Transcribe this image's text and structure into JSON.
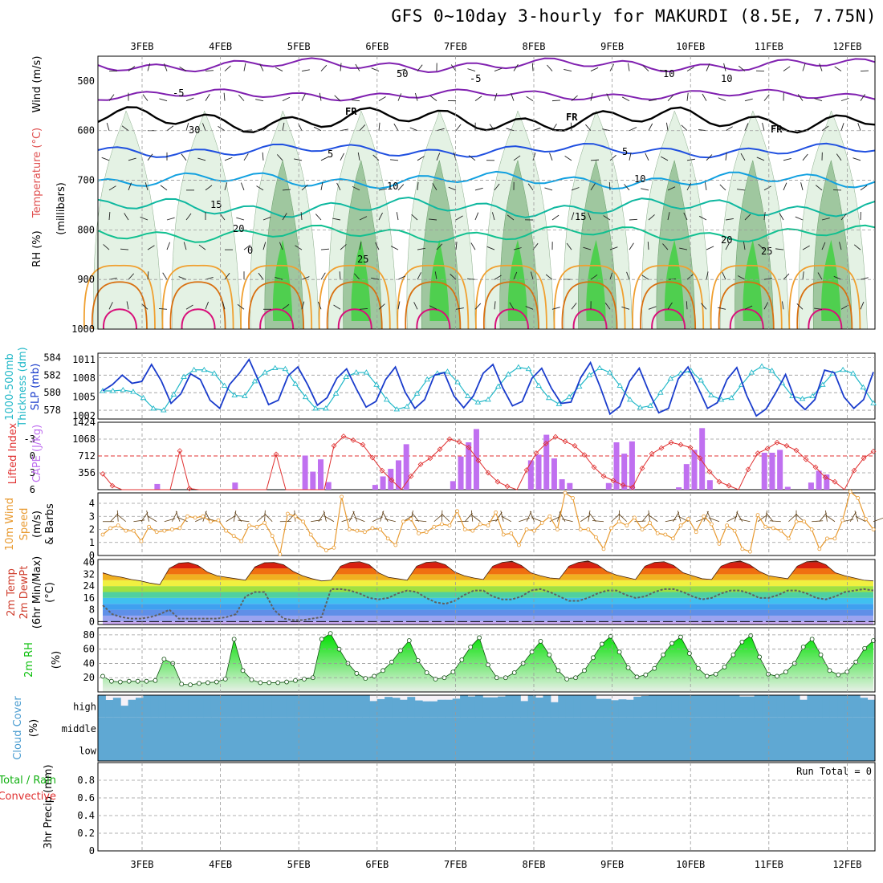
{
  "title": "GFS 0~10day 3-hourly for MAKURDI (8.5E, 7.75N)",
  "dates": [
    "3FEB",
    "4FEB",
    "5FEB",
    "6FEB",
    "7FEB",
    "8FEB",
    "9FEB",
    "10FEB",
    "11FEB",
    "12FEB"
  ],
  "colors": {
    "temp_warm": "#e8a020",
    "temp_hot": "#d8107a",
    "freezing": "#000000",
    "cool_blue": "#2050e0",
    "cyan": "#10a0e0",
    "teal": "#10b8a0",
    "rh_light": "#e4f2e4",
    "rh_mid": "#9fc79f",
    "rh_dark": "#4fcf4f",
    "slp": "#1a3ccc",
    "thickness": "#22b8c8",
    "lifted": "#e03030",
    "cape": "#c070f0",
    "wind": "#e89a30",
    "cloud": "#5fa8d3",
    "rh2m": "#10c010"
  },
  "panel_labels": {
    "upper": {
      "wind": "Wind (m/s)",
      "temp": "Temperature (°C)",
      "rh": "RH (%)",
      "unit": "(millibars)"
    },
    "thickness": {
      "a": "1000-500mb",
      "b": "Thickness (dm)",
      "slp": "SLP (mb)"
    },
    "li": {
      "li": "Lifted Index",
      "cape": "CAPE (J/kg)"
    },
    "wind10": {
      "a": "10m Wind",
      "b": "Speed",
      "c": "(m/s)",
      "d": "& Barbs"
    },
    "temp2m": {
      "a": "2m Temp",
      "b": "2m DewPt",
      "c": "(6hr Min/Max)",
      "d": "(°C)"
    },
    "rh2m": {
      "a": "2m RH",
      "b": "(%)"
    },
    "cloud": {
      "a": "Cloud Cover",
      "b": "(%)",
      "high": "high",
      "middle": "middle",
      "low": "low"
    },
    "precip": {
      "a": "Total / Rain",
      "b": "Convective",
      "c": "3hr Precip (mm)",
      "run_total": "Run Total = 0"
    }
  },
  "upper_contour_labels": [
    "-5",
    "-5",
    "FR",
    "FR",
    "FR",
    "5",
    "5",
    "10",
    "10",
    "15",
    "15",
    "20",
    "20",
    "25",
    "25",
    "0",
    "50",
    "30",
    "10",
    "10"
  ],
  "chart_data": [
    {
      "type": "line",
      "name": "upper-air",
      "y_axis": {
        "label": "(millibars)",
        "ticks": [
          500,
          600,
          700,
          800,
          900,
          1000
        ],
        "lim": [
          450,
          1000
        ]
      },
      "x": [
        "3FEB",
        "4FEB",
        "5FEB",
        "6FEB",
        "7FEB",
        "8FEB",
        "9FEB",
        "10FEB",
        "11FEB",
        "12FEB"
      ]
    },
    {
      "type": "line",
      "name": "thickness-slp",
      "thickness_axis": {
        "ticks": [
          578,
          580,
          582,
          584
        ],
        "lim": [
          577,
          584.5
        ]
      },
      "slp_axis": {
        "ticks": [
          1002,
          1005,
          1008,
          1011
        ],
        "lim": [
          1001.5,
          1012
        ]
      },
      "thickness": [
        580.2,
        580.2,
        580.3,
        580.1,
        579.4,
        578.2,
        578.0,
        579.8,
        581.8,
        582.6,
        582.6,
        582.2,
        580.8,
        579.7,
        579.6,
        581.3,
        582.3,
        582.8,
        582.7,
        581.0,
        579.5,
        578.2,
        578.2,
        579.9,
        581.8,
        582.3,
        582.3,
        580.9,
        579.2,
        578.1,
        578.4,
        579.9,
        581.5,
        582.2,
        582.4,
        581.2,
        579.6,
        578.9,
        579.2,
        580.7,
        582.1,
        582.9,
        582.7,
        580.8,
        579.4,
        578.7,
        579.5,
        580.7,
        582.0,
        582.8,
        582.3,
        580.8,
        579.2,
        578.3,
        578.5,
        580.0,
        581.6,
        582.2,
        582.5,
        581.4,
        579.7,
        579.2,
        579.4,
        580.9,
        582.3,
        583.0,
        582.5,
        581.1,
        579.6,
        579.3,
        579.6,
        580.9,
        582.2,
        582.6,
        582.2,
        580.6,
        578.8
      ],
      "slp": [
        1006.0,
        1007.0,
        1008.5,
        1007.2,
        1007.5,
        1010.2,
        1007.6,
        1004.0,
        1005.5,
        1008.7,
        1007.8,
        1004.5,
        1003.2,
        1007.0,
        1008.8,
        1011.0,
        1007.5,
        1003.8,
        1004.5,
        1008.4,
        1009.8,
        1007.0,
        1003.7,
        1004.9,
        1008.0,
        1009.5,
        1006.3,
        1003.4,
        1004.3,
        1007.8,
        1009.8,
        1005.8,
        1003.2,
        1004.6,
        1008.5,
        1008.9,
        1005.2,
        1003.3,
        1005.2,
        1008.8,
        1010.2,
        1006.5,
        1003.6,
        1004.3,
        1008.0,
        1009.6,
        1006.4,
        1004.0,
        1004.2,
        1008.1,
        1010.5,
        1006.6,
        1002.3,
        1003.5,
        1007.5,
        1009.6,
        1005.8,
        1002.5,
        1003.2,
        1007.9,
        1009.8,
        1006.6,
        1003.2,
        1004.1,
        1007.8,
        1009.7,
        1005.3,
        1002.0,
        1003.1,
        1005.7,
        1008.6,
        1004.5,
        1003.0,
        1004.6,
        1009.3,
        1008.9,
        1005.0,
        1003.2,
        1004.6,
        1009.0
      ]
    },
    {
      "type": "bar",
      "name": "lifted-index-cape",
      "li_axis": {
        "ticks": [
          "-3",
          "0",
          "3",
          "6"
        ],
        "lim": [
          -6,
          6
        ]
      },
      "cape_axis": {
        "ticks": [
          356,
          712,
          1068,
          1424
        ],
        "lim": [
          0,
          1424
        ]
      },
      "lifted_index": [
        3.2,
        5.3,
        6.2,
        6.2,
        6.2,
        6.2,
        6.2,
        6.2,
        -0.9,
        5.8,
        6.2,
        6.2,
        6.2,
        6.2,
        6.2,
        6.2,
        6.2,
        6.2,
        -0.3,
        6.2,
        6.2,
        6.2,
        6.2,
        6.2,
        -1.8,
        -3.5,
        -2.8,
        -2.0,
        0.3,
        2.6,
        4.3,
        6.2,
        3.6,
        1.5,
        0.4,
        -1.2,
        -3.0,
        -2.5,
        -1.5,
        0.8,
        3.0,
        4.6,
        5.4,
        6.2,
        2.5,
        -0.5,
        -2.2,
        -3.4,
        -2.6,
        -1.8,
        -0.2,
        2.0,
        3.6,
        4.4,
        5.2,
        5.6,
        2.2,
        -0.4,
        -1.4,
        -2.4,
        -2.0,
        -1.5,
        0.4,
        2.8,
        4.6,
        5.3,
        6.0,
        2.4,
        -0.5,
        -1.3,
        -2.4,
        -1.8,
        -1.0,
        0.6,
        2.0,
        3.8,
        4.6,
        6.0,
        2.6,
        0.4,
        -0.8
      ],
      "cape": [
        0,
        0,
        0,
        0,
        0,
        0,
        0,
        0,
        0,
        0,
        0,
        0,
        0,
        0,
        0,
        0,
        0,
        0,
        0,
        0,
        0,
        0,
        0,
        0,
        0,
        640,
        0,
        310,
        0,
        0,
        0,
        0,
        0,
        0,
        0,
        0,
        0,
        640,
        420,
        0,
        0,
        0,
        0,
        0,
        0,
        640,
        1020,
        1140,
        0,
        0,
        0,
        0,
        0,
        0,
        0,
        640,
        0,
        720,
        1100,
        0,
        0,
        0,
        0,
        0,
        0,
        580,
        640,
        720,
        1120,
        0,
        0,
        0,
        0,
        0,
        320,
        760,
        1100,
        0,
        0,
        0,
        700,
        560,
        780,
        0,
        0,
        0
      ],
      "cape_bars": [
        {
          "i": 7,
          "v": 120
        },
        {
          "i": 17,
          "v": 150
        },
        {
          "i": 26,
          "v": 720
        },
        {
          "i": 27,
          "v": 380
        },
        {
          "i": 28,
          "v": 640
        },
        {
          "i": 29,
          "v": 160
        },
        {
          "i": 35,
          "v": 100
        },
        {
          "i": 36,
          "v": 280
        },
        {
          "i": 37,
          "v": 440
        },
        {
          "i": 38,
          "v": 620
        },
        {
          "i": 39,
          "v": 960
        },
        {
          "i": 45,
          "v": 180
        },
        {
          "i": 46,
          "v": 700
        },
        {
          "i": 47,
          "v": 1000
        },
        {
          "i": 48,
          "v": 1280
        },
        {
          "i": 55,
          "v": 620
        },
        {
          "i": 56,
          "v": 740
        },
        {
          "i": 57,
          "v": 1160
        },
        {
          "i": 58,
          "v": 660
        },
        {
          "i": 59,
          "v": 220
        },
        {
          "i": 60,
          "v": 140
        },
        {
          "i": 65,
          "v": 140
        },
        {
          "i": 66,
          "v": 1000
        },
        {
          "i": 67,
          "v": 760
        },
        {
          "i": 68,
          "v": 1020
        },
        {
          "i": 74,
          "v": 50
        },
        {
          "i": 75,
          "v": 540
        },
        {
          "i": 76,
          "v": 840
        },
        {
          "i": 77,
          "v": 1300
        },
        {
          "i": 78,
          "v": 200
        },
        {
          "i": 85,
          "v": 780
        },
        {
          "i": 86,
          "v": 780
        },
        {
          "i": 87,
          "v": 840
        },
        {
          "i": 88,
          "v": 60
        },
        {
          "i": 91,
          "v": 150
        },
        {
          "i": 92,
          "v": 400
        },
        {
          "i": 93,
          "v": 320
        }
      ]
    },
    {
      "type": "line",
      "name": "10m-wind-speed",
      "y_axis": {
        "ticks": [
          0,
          1,
          2,
          3,
          4
        ],
        "lim": [
          0,
          4.8
        ]
      },
      "values": [
        1.6,
        2.1,
        2.3,
        1.9,
        1.9,
        1.1,
        2.2,
        1.8,
        1.9,
        2.0,
        2.1,
        3.0,
        2.9,
        3.0,
        2.6,
        2.7,
        1.9,
        1.5,
        1.1,
        2.3,
        2.2,
        2.5,
        1.5,
        0.1,
        3.2,
        3.0,
        2.6,
        1.6,
        0.8,
        0.4,
        0.6,
        4.5,
        2.0,
        1.9,
        1.8,
        2.1,
        2.0,
        1.3,
        0.8,
        2.6,
        2.8,
        1.7,
        1.8,
        2.2,
        2.4,
        2.3,
        3.4,
        2.0,
        1.9,
        2.4,
        2.3,
        3.3,
        1.6,
        1.7,
        0.8,
        2.0,
        1.9,
        2.5,
        3.0,
        2.0,
        4.8,
        4.4,
        2.0,
        2.0,
        1.4,
        0.5,
        2.1,
        2.6,
        2.3,
        2.9,
        2.0,
        2.5,
        1.7,
        1.6,
        1.3,
        2.3,
        2.8,
        1.8,
        3.0,
        2.4,
        0.9,
        2.3,
        1.9,
        0.5,
        0.3,
        3.1,
        2.2,
        2.1,
        1.9,
        1.3,
        2.6,
        2.6,
        2.0,
        0.5,
        1.3,
        1.3,
        2.7,
        4.9,
        4.4,
        2.8,
        2.0
      ]
    },
    {
      "type": "area",
      "name": "2m-temp-dewpt",
      "y_axis": {
        "ticks": [
          0,
          8,
          16,
          24,
          32,
          40
        ],
        "lim": [
          -2,
          42
        ]
      },
      "temp": [
        33.0,
        31.0,
        30.0,
        28.5,
        27.5,
        26.0,
        25.0,
        36.0,
        39.5,
        40.0,
        38.0,
        33.5,
        31.0,
        30.0,
        29.0,
        28.0,
        37.0,
        39.8,
        40.0,
        38.5,
        34.0,
        31.0,
        29.0,
        27.5,
        28.0,
        37.5,
        40.0,
        40.5,
        38.5,
        33.0,
        30.0,
        29.0,
        28.0,
        37.5,
        40.0,
        40.5,
        38.5,
        33.5,
        31.0,
        29.5,
        28.5,
        37.5,
        40.0,
        40.8,
        38.0,
        33.0,
        31.0,
        29.5,
        29.0,
        37.5,
        40.0,
        41.0,
        38.5,
        34.0,
        31.5,
        30.0,
        28.5,
        37.5,
        40.0,
        40.5,
        38.0,
        33.0,
        31.0,
        29.0,
        28.5,
        37.5,
        40.0,
        41.0,
        38.5,
        34.0,
        31.0,
        30.0,
        29.0,
        37.5,
        40.5,
        41.0,
        38.5,
        33.0,
        31.0,
        29.5,
        28.0,
        27.5
      ],
      "dewpt": [
        11,
        5,
        3,
        2,
        2,
        3,
        5,
        8,
        2,
        2,
        2,
        2,
        2,
        3,
        5,
        17,
        20,
        20,
        8,
        2,
        1,
        1,
        2,
        3,
        22,
        22,
        21,
        19,
        16,
        15,
        16,
        19,
        21,
        20,
        16,
        13,
        12,
        14,
        18,
        21,
        21,
        17,
        15,
        15,
        17,
        21,
        22,
        20,
        17,
        14,
        14,
        16,
        19,
        21,
        21,
        18,
        16,
        17,
        20,
        22,
        22,
        20,
        17,
        15,
        16,
        19,
        21,
        21,
        19,
        16,
        16,
        18,
        21,
        21,
        19,
        16,
        15,
        17,
        20,
        21,
        22,
        21
      ]
    },
    {
      "type": "area",
      "name": "2m-rh",
      "y_axis": {
        "ticks": [
          20,
          40,
          60,
          80
        ],
        "lim": [
          0,
          90
        ]
      },
      "values": [
        22,
        15,
        14,
        15,
        15,
        15,
        16,
        46,
        40,
        11,
        10,
        12,
        13,
        14,
        18,
        74,
        30,
        17,
        13,
        13,
        13,
        14,
        16,
        18,
        20,
        74,
        82,
        60,
        40,
        26,
        19,
        22,
        30,
        42,
        58,
        72,
        44,
        27,
        18,
        20,
        28,
        45,
        63,
        76,
        38,
        20,
        20,
        27,
        40,
        56,
        71,
        52,
        30,
        18,
        20,
        30,
        48,
        67,
        78,
        56,
        34,
        21,
        24,
        33,
        52,
        68,
        77,
        54,
        33,
        22,
        25,
        35,
        52,
        70,
        79,
        49,
        25,
        22,
        28,
        40,
        63,
        74,
        52,
        30,
        24,
        28,
        42,
        61,
        72
      ]
    },
    {
      "type": "bar",
      "name": "cloud-cover",
      "levels": [
        "high",
        "middle",
        "low"
      ],
      "high": [
        100,
        78,
        88,
        52,
        79,
        88,
        100,
        100,
        100,
        100,
        100,
        100,
        100,
        100,
        100,
        100,
        100,
        100,
        100,
        100,
        100,
        100,
        100,
        100,
        100,
        100,
        100,
        100,
        100,
        100,
        100,
        100,
        100,
        100,
        100,
        100,
        73,
        82,
        92,
        88,
        79,
        92,
        76,
        72,
        72,
        79,
        79,
        84,
        100,
        94,
        100,
        90,
        90,
        94,
        100,
        100,
        73,
        100,
        89,
        100,
        68,
        100,
        100,
        100,
        100,
        100,
        83,
        83,
        77,
        81,
        79,
        93,
        97,
        100,
        100,
        100,
        100,
        100,
        100,
        100,
        100,
        100,
        100,
        100,
        100,
        94,
        94,
        100,
        100,
        100,
        100,
        100,
        100,
        79,
        100,
        100,
        100,
        100,
        100,
        100,
        100,
        88,
        79
      ],
      "middle": [
        100,
        100,
        100,
        100,
        100,
        100,
        100,
        100,
        100,
        100,
        100,
        100,
        100,
        100,
        100,
        100,
        100,
        100,
        100,
        100,
        100,
        100,
        100,
        100,
        100,
        100,
        100,
        100,
        100,
        100,
        100,
        100,
        100,
        100,
        100,
        100,
        100,
        100,
        100,
        100,
        100,
        100,
        100,
        100,
        100,
        100,
        100,
        100,
        100,
        100,
        100,
        100,
        100,
        100,
        100,
        100,
        100,
        100,
        100,
        100,
        100,
        100,
        100,
        100,
        100,
        100,
        100,
        100,
        100,
        100,
        100,
        100,
        100,
        100,
        100,
        100,
        100,
        100,
        100,
        100,
        100,
        100,
        100,
        100,
        100,
        100,
        100,
        100,
        100,
        100,
        100,
        100,
        100,
        100,
        100,
        100,
        100,
        100,
        100,
        100,
        100,
        100
      ],
      "low": [
        100,
        100,
        100,
        100,
        100,
        100,
        100,
        100,
        100,
        100,
        100,
        100,
        100,
        100,
        100,
        100,
        100,
        100,
        100,
        100,
        100,
        100,
        100,
        100,
        100,
        100,
        100,
        100,
        100,
        100,
        100,
        100,
        100,
        100,
        100,
        100,
        100,
        100,
        100,
        100,
        100,
        100,
        100,
        100,
        100,
        100,
        100,
        100,
        100,
        100,
        100,
        100,
        100,
        100,
        100,
        100,
        100,
        100,
        100,
        100,
        100,
        100,
        100,
        100,
        100,
        100,
        100,
        100,
        100,
        100,
        100,
        100,
        100,
        100,
        100,
        100,
        100,
        100,
        100,
        100,
        100,
        100,
        100,
        100,
        100,
        100,
        100,
        100,
        100,
        100,
        100,
        100,
        100,
        100,
        100,
        100,
        100,
        100,
        100,
        100,
        100,
        100
      ]
    },
    {
      "type": "bar",
      "name": "3hr-precip",
      "y_axis": {
        "ticks": [
          0,
          0.2,
          0.4,
          0.6,
          0.8
        ],
        "lim": [
          0,
          1
        ]
      },
      "values": [],
      "run_total_text": "Run Total = 0"
    }
  ]
}
